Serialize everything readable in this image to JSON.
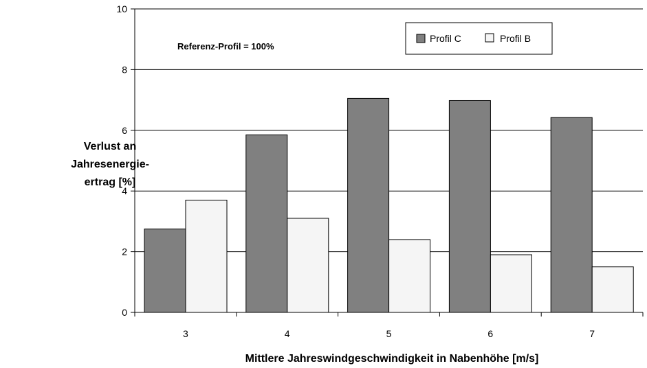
{
  "chart_data": {
    "type": "bar",
    "categories": [
      "3",
      "4",
      "5",
      "6",
      "7"
    ],
    "series": [
      {
        "name": "Profil C",
        "color": "#808080",
        "values": [
          2.75,
          5.85,
          7.05,
          6.98,
          6.42
        ]
      },
      {
        "name": "Profil B",
        "color": "#f5f5f5",
        "values": [
          3.7,
          3.1,
          2.4,
          1.9,
          1.5
        ]
      }
    ],
    "xlabel": "Mittlere Jahreswindgeschwindigkeit in Nabenhöhe [m/s]",
    "ylabel_lines": [
      "Verlust an",
      "Jahresenergie-",
      "ertrag [%]"
    ],
    "ylim": [
      0,
      10
    ],
    "yticks": [
      0,
      2,
      4,
      6,
      8,
      10
    ],
    "annotation": "Referenz-Profil =   100%",
    "grid": true,
    "legend_position": "top-right"
  }
}
